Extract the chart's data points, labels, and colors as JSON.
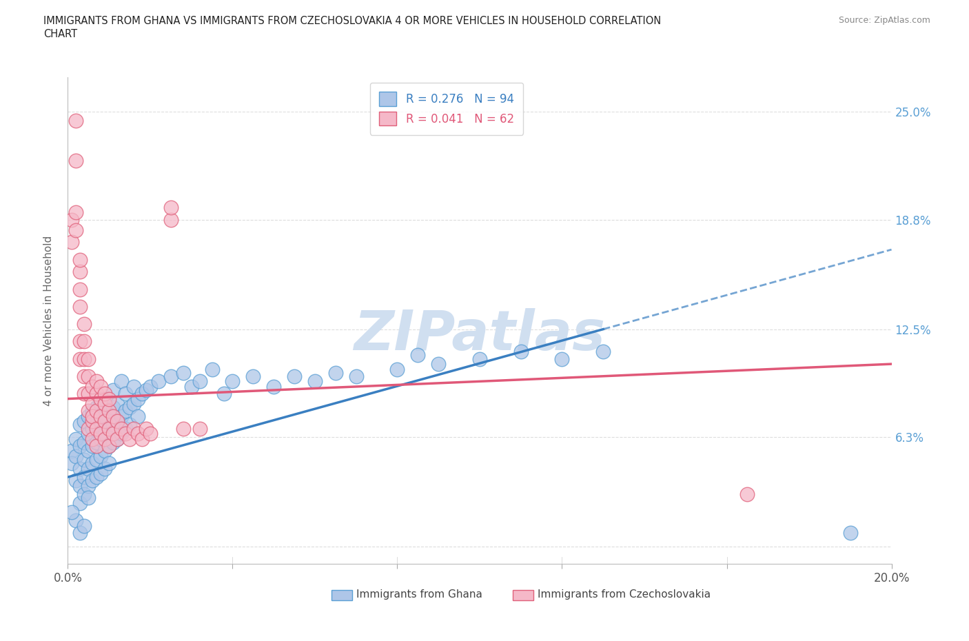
{
  "title_line1": "IMMIGRANTS FROM GHANA VS IMMIGRANTS FROM CZECHOSLOVAKIA 4 OR MORE VEHICLES IN HOUSEHOLD CORRELATION",
  "title_line2": "CHART",
  "source": "Source: ZipAtlas.com",
  "ylabel": "4 or more Vehicles in Household",
  "xlim": [
    0.0,
    0.2
  ],
  "ylim": [
    -0.01,
    0.27
  ],
  "ghana_color": "#aec6e8",
  "ghana_edge_color": "#5a9fd4",
  "czech_color": "#f5b8c8",
  "czech_edge_color": "#e0607a",
  "ghana_line_color": "#3a7fc1",
  "czech_line_color": "#e05878",
  "R_ghana": 0.276,
  "N_ghana": 94,
  "R_czech": 0.041,
  "N_czech": 62,
  "watermark": "ZIPatlas",
  "watermark_color": "#d0dff0",
  "ytick_vals": [
    0.0,
    0.063,
    0.125,
    0.188,
    0.25
  ],
  "yticklabels_right": [
    "",
    "6.3%",
    "12.5%",
    "18.8%",
    "25.0%"
  ],
  "ghana_scatter": [
    [
      0.001,
      0.055
    ],
    [
      0.001,
      0.048
    ],
    [
      0.002,
      0.052
    ],
    [
      0.002,
      0.038
    ],
    [
      0.002,
      0.062
    ],
    [
      0.003,
      0.045
    ],
    [
      0.003,
      0.058
    ],
    [
      0.003,
      0.035
    ],
    [
      0.003,
      0.07
    ],
    [
      0.003,
      0.025
    ],
    [
      0.004,
      0.05
    ],
    [
      0.004,
      0.06
    ],
    [
      0.004,
      0.04
    ],
    [
      0.004,
      0.072
    ],
    [
      0.004,
      0.03
    ],
    [
      0.005,
      0.055
    ],
    [
      0.005,
      0.065
    ],
    [
      0.005,
      0.045
    ],
    [
      0.005,
      0.075
    ],
    [
      0.005,
      0.035
    ],
    [
      0.005,
      0.028
    ],
    [
      0.006,
      0.058
    ],
    [
      0.006,
      0.068
    ],
    [
      0.006,
      0.048
    ],
    [
      0.006,
      0.078
    ],
    [
      0.006,
      0.038
    ],
    [
      0.007,
      0.06
    ],
    [
      0.007,
      0.07
    ],
    [
      0.007,
      0.05
    ],
    [
      0.007,
      0.08
    ],
    [
      0.007,
      0.04
    ],
    [
      0.008,
      0.062
    ],
    [
      0.008,
      0.072
    ],
    [
      0.008,
      0.052
    ],
    [
      0.008,
      0.082
    ],
    [
      0.008,
      0.042
    ],
    [
      0.009,
      0.065
    ],
    [
      0.009,
      0.055
    ],
    [
      0.009,
      0.075
    ],
    [
      0.009,
      0.085
    ],
    [
      0.009,
      0.045
    ],
    [
      0.01,
      0.068
    ],
    [
      0.01,
      0.058
    ],
    [
      0.01,
      0.078
    ],
    [
      0.01,
      0.048
    ],
    [
      0.011,
      0.07
    ],
    [
      0.011,
      0.06
    ],
    [
      0.011,
      0.08
    ],
    [
      0.011,
      0.09
    ],
    [
      0.012,
      0.072
    ],
    [
      0.012,
      0.062
    ],
    [
      0.012,
      0.082
    ],
    [
      0.013,
      0.075
    ],
    [
      0.013,
      0.065
    ],
    [
      0.013,
      0.095
    ],
    [
      0.014,
      0.078
    ],
    [
      0.014,
      0.068
    ],
    [
      0.014,
      0.088
    ],
    [
      0.015,
      0.08
    ],
    [
      0.015,
      0.07
    ],
    [
      0.016,
      0.082
    ],
    [
      0.016,
      0.092
    ],
    [
      0.017,
      0.085
    ],
    [
      0.017,
      0.075
    ],
    [
      0.018,
      0.088
    ],
    [
      0.019,
      0.09
    ],
    [
      0.02,
      0.092
    ],
    [
      0.022,
      0.095
    ],
    [
      0.025,
      0.098
    ],
    [
      0.028,
      0.1
    ],
    [
      0.03,
      0.092
    ],
    [
      0.032,
      0.095
    ],
    [
      0.035,
      0.102
    ],
    [
      0.038,
      0.088
    ],
    [
      0.04,
      0.095
    ],
    [
      0.045,
      0.098
    ],
    [
      0.05,
      0.092
    ],
    [
      0.055,
      0.098
    ],
    [
      0.06,
      0.095
    ],
    [
      0.065,
      0.1
    ],
    [
      0.07,
      0.098
    ],
    [
      0.08,
      0.102
    ],
    [
      0.085,
      0.11
    ],
    [
      0.09,
      0.105
    ],
    [
      0.1,
      0.108
    ],
    [
      0.11,
      0.112
    ],
    [
      0.12,
      0.108
    ],
    [
      0.13,
      0.112
    ],
    [
      0.002,
      0.015
    ],
    [
      0.003,
      0.008
    ],
    [
      0.004,
      0.012
    ],
    [
      0.001,
      0.02
    ],
    [
      0.19,
      0.008
    ]
  ],
  "czech_scatter": [
    [
      0.001,
      0.188
    ],
    [
      0.001,
      0.175
    ],
    [
      0.002,
      0.192
    ],
    [
      0.002,
      0.182
    ],
    [
      0.002,
      0.245
    ],
    [
      0.002,
      0.222
    ],
    [
      0.003,
      0.148
    ],
    [
      0.003,
      0.158
    ],
    [
      0.003,
      0.165
    ],
    [
      0.003,
      0.138
    ],
    [
      0.003,
      0.108
    ],
    [
      0.003,
      0.118
    ],
    [
      0.004,
      0.128
    ],
    [
      0.004,
      0.108
    ],
    [
      0.004,
      0.118
    ],
    [
      0.004,
      0.098
    ],
    [
      0.004,
      0.088
    ],
    [
      0.005,
      0.098
    ],
    [
      0.005,
      0.088
    ],
    [
      0.005,
      0.078
    ],
    [
      0.005,
      0.108
    ],
    [
      0.005,
      0.068
    ],
    [
      0.006,
      0.092
    ],
    [
      0.006,
      0.082
    ],
    [
      0.006,
      0.072
    ],
    [
      0.006,
      0.062
    ],
    [
      0.006,
      0.075
    ],
    [
      0.007,
      0.088
    ],
    [
      0.007,
      0.078
    ],
    [
      0.007,
      0.068
    ],
    [
      0.007,
      0.058
    ],
    [
      0.007,
      0.095
    ],
    [
      0.008,
      0.085
    ],
    [
      0.008,
      0.075
    ],
    [
      0.008,
      0.065
    ],
    [
      0.008,
      0.092
    ],
    [
      0.009,
      0.082
    ],
    [
      0.009,
      0.072
    ],
    [
      0.009,
      0.062
    ],
    [
      0.009,
      0.088
    ],
    [
      0.01,
      0.078
    ],
    [
      0.01,
      0.068
    ],
    [
      0.01,
      0.058
    ],
    [
      0.01,
      0.085
    ],
    [
      0.011,
      0.075
    ],
    [
      0.011,
      0.065
    ],
    [
      0.012,
      0.072
    ],
    [
      0.012,
      0.062
    ],
    [
      0.013,
      0.068
    ],
    [
      0.014,
      0.065
    ],
    [
      0.015,
      0.062
    ],
    [
      0.016,
      0.068
    ],
    [
      0.017,
      0.065
    ],
    [
      0.018,
      0.062
    ],
    [
      0.019,
      0.068
    ],
    [
      0.02,
      0.065
    ],
    [
      0.025,
      0.188
    ],
    [
      0.025,
      0.195
    ],
    [
      0.028,
      0.068
    ],
    [
      0.032,
      0.068
    ],
    [
      0.165,
      0.03
    ]
  ]
}
